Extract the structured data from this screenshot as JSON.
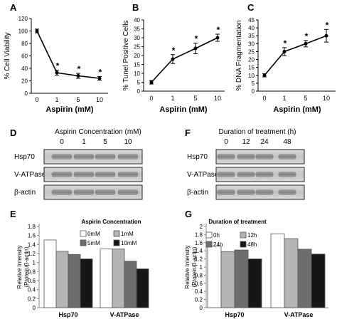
{
  "chart_data": [
    {
      "panel": "A",
      "type": "line",
      "x": [
        "0",
        "1",
        "5",
        "10"
      ],
      "values": [
        100,
        33,
        28,
        24
      ],
      "errors": [
        3,
        4,
        4,
        3
      ],
      "significant": [
        false,
        true,
        true,
        true
      ],
      "xlabel": "Aspirin (mM)",
      "ylabel": "% Cell Viability",
      "ylim": [
        0,
        120
      ],
      "yticks": [
        "0",
        "20",
        "40",
        "60",
        "80",
        "100",
        "120"
      ]
    },
    {
      "panel": "B",
      "type": "line",
      "x": [
        "0",
        "1",
        "5",
        "10"
      ],
      "values": [
        5,
        18,
        24,
        30
      ],
      "errors": [
        1,
        2.5,
        3,
        2
      ],
      "significant": [
        false,
        true,
        true,
        true
      ],
      "xlabel": "Aspirin (mM)",
      "ylabel": "% Tunel Positive Cells",
      "ylim": [
        0,
        40
      ],
      "yticks": [
        "0",
        "5",
        "10",
        "15",
        "20",
        "25",
        "30",
        "35",
        "40"
      ]
    },
    {
      "panel": "C",
      "type": "line",
      "x": [
        "0",
        "1",
        "5",
        "10"
      ],
      "values": [
        10,
        25,
        30,
        35
      ],
      "errors": [
        1,
        2.5,
        2,
        4
      ],
      "significant": [
        false,
        true,
        true,
        true
      ],
      "xlabel": "Aspirin (mM)",
      "ylabel": "% DNA Fragmentation",
      "ylim": [
        0,
        45
      ],
      "yticks": [
        "0",
        "5",
        "10",
        "15",
        "20",
        "25",
        "30",
        "35",
        "40",
        "45"
      ]
    },
    {
      "panel": "E",
      "type": "bar",
      "title": "Aspirin Concentration",
      "categories": [
        "Hsp70",
        "V-ATPase"
      ],
      "series": [
        {
          "name": "0mM",
          "values": [
            1.5,
            1.3
          ],
          "color": "#ffffff"
        },
        {
          "name": "1mM",
          "values": [
            1.25,
            1.3
          ],
          "color": "#b4b4b4"
        },
        {
          "name": "5mM",
          "values": [
            1.18,
            1.03
          ],
          "color": "#6e6e6e"
        },
        {
          "name": "10mM",
          "values": [
            1.08,
            0.86
          ],
          "color": "#161616"
        }
      ],
      "ylabel": "Relative Intensity (Protein/β-actin)",
      "ylim": [
        0,
        1.8
      ],
      "yticks": [
        "0",
        "0.2",
        "0.4",
        "0.6",
        "0.8",
        "1",
        "1.2",
        "1.4",
        "1.6",
        "1.8"
      ],
      "legend": "top-right"
    },
    {
      "panel": "G",
      "type": "bar",
      "title": "Duration of treatment",
      "categories": [
        "Hsp70",
        "V-ATPase"
      ],
      "series": [
        {
          "name": "0h",
          "values": [
            1.52,
            1.82
          ],
          "color": "#ffffff"
        },
        {
          "name": "12h",
          "values": [
            1.38,
            1.7
          ],
          "color": "#b4b4b4"
        },
        {
          "name": "24h",
          "values": [
            1.42,
            1.44
          ],
          "color": "#6e6e6e"
        },
        {
          "name": "48h",
          "values": [
            1.2,
            1.32
          ],
          "color": "#161616"
        }
      ],
      "ylabel": "Relative Intensity (Protein/β-actin)",
      "ylim": [
        0,
        2
      ],
      "yticks": [
        "0",
        "0.2",
        "0.4",
        "0.6",
        "0.8",
        "1",
        "1.2",
        "1.4",
        "1.6",
        "1.8",
        "2"
      ],
      "legend": "top-right"
    }
  ],
  "blots": [
    {
      "panel": "D",
      "title": "Aspirin Concentration (mM)",
      "lanes": [
        "0",
        "1",
        "5",
        "10"
      ],
      "rows": [
        "Hsp70",
        "V-ATPase",
        "β-actin"
      ]
    },
    {
      "panel": "F",
      "title": "Duration of treatment (h)",
      "lanes": [
        "0",
        "12",
        "24",
        "48"
      ],
      "rows": [
        "Hsp70",
        "V-ATPase",
        "β-actin"
      ]
    }
  ]
}
